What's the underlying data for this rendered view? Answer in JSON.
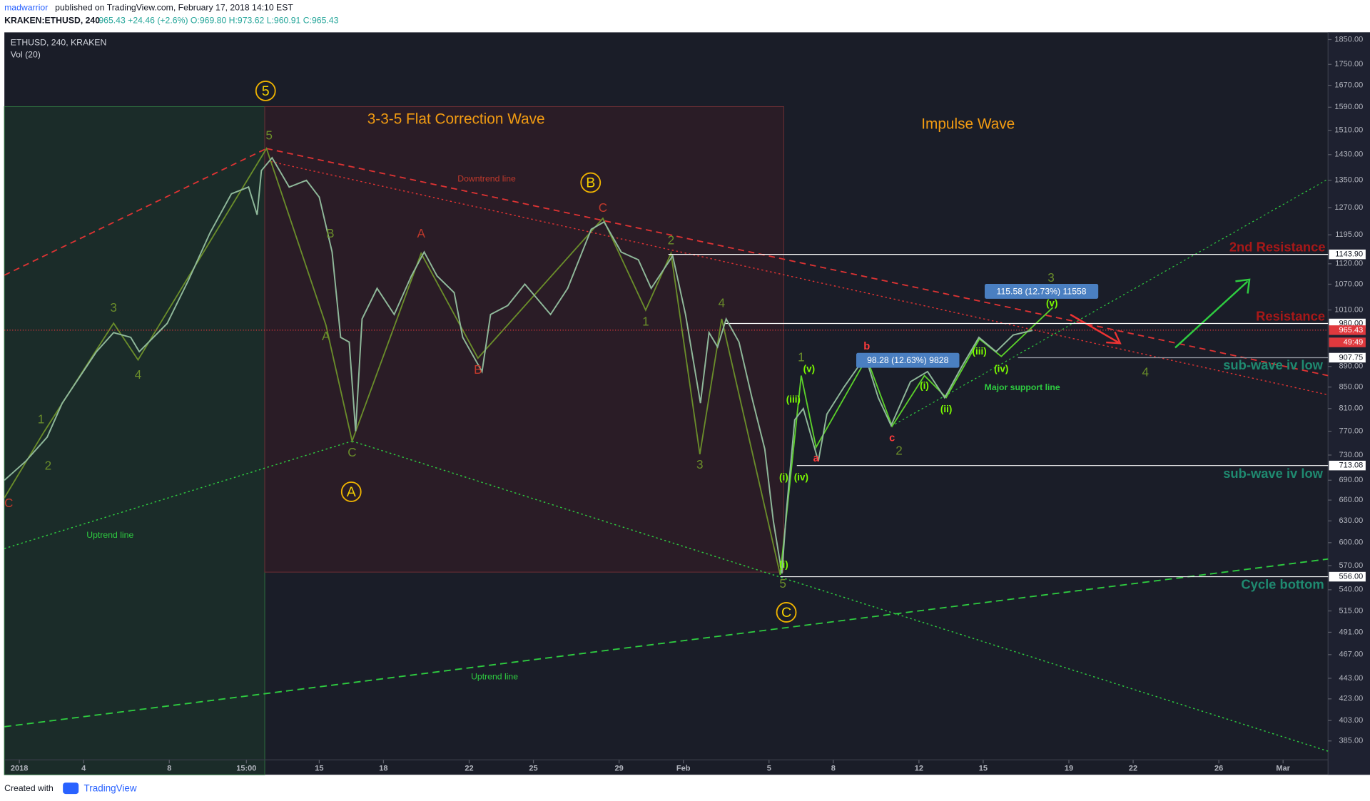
{
  "header": {
    "author": "madwarrior",
    "published": "published on TradingView.com, February 17, 2018 14:10 EST",
    "symbol": "KRAKEN:ETHUSD, 240",
    "quote": "965.43 +24.46 (+2.6%) O:969.80 H:973.62 L:960.91 C:965.43"
  },
  "footer": {
    "created": "Created with",
    "brand": "TradingView"
  },
  "chart_data": {
    "type": "line",
    "indicator": "Vol (20)",
    "log_scale": true,
    "grid": false,
    "series": [
      {
        "name": "ETHUSD, 240, KRAKEN",
        "color": "#8fb89a",
        "x": [
          0.3,
          1.3,
          2.3,
          3.0,
          4.6,
          5.4,
          6.2,
          6.6,
          7.9,
          8.9,
          9.9,
          10.9,
          11.7,
          12.1,
          12.3,
          12.8,
          13.6,
          14.4,
          15.0,
          15.6,
          16.0,
          16.4,
          16.7,
          17.0,
          17.7,
          18.5,
          19.3,
          19.9,
          20.5,
          21.3,
          21.7,
          22.6,
          23.0,
          23.8,
          24.6,
          25.8,
          26.6,
          27.7,
          28.3,
          29.1,
          29.9,
          30.5,
          31.5,
          32.1,
          32.8,
          33.2,
          33.6,
          34.0,
          34.6,
          35.2,
          35.8,
          36.2,
          36.6,
          36.8,
          37.2,
          37.6,
          38.3,
          38.7,
          39.5,
          40.5,
          41.1,
          41.7,
          42.6,
          43.4,
          44.2,
          45.0,
          45.8,
          46.6,
          47.4,
          48.3
        ],
        "values": [
          690,
          720,
          760,
          820,
          920,
          960,
          950,
          920,
          980,
          1080,
          1200,
          1310,
          1330,
          1250,
          1380,
          1420,
          1330,
          1350,
          1300,
          1150,
          950,
          940,
          770,
          990,
          1060,
          1000,
          1090,
          1150,
          1090,
          1050,
          950,
          880,
          1000,
          1020,
          1070,
          1000,
          1060,
          1210,
          1230,
          1150,
          1130,
          1060,
          1140,
          1000,
          820,
          960,
          930,
          990,
          940,
          830,
          740,
          630,
          560,
          640,
          790,
          810,
          720,
          800,
          850,
          910,
          830,
          780,
          860,
          880,
          830,
          890,
          950,
          920,
          955,
          965
        ]
      }
    ],
    "xlim": [
      0.3,
      62.1
    ],
    "xticks": [
      {
        "value": 1,
        "label": "2018"
      },
      {
        "value": 4,
        "label": "4"
      },
      {
        "value": 8,
        "label": "8"
      },
      {
        "value": 11.6,
        "label": "15:00"
      },
      {
        "value": 15,
        "label": "15"
      },
      {
        "value": 18,
        "label": "18"
      },
      {
        "value": 22,
        "label": "22"
      },
      {
        "value": 25,
        "label": "25"
      },
      {
        "value": 29,
        "label": "29"
      },
      {
        "value": 32,
        "label": "Feb"
      },
      {
        "value": 36,
        "label": "5"
      },
      {
        "value": 39,
        "label": "8"
      },
      {
        "value": 43,
        "label": "12"
      },
      {
        "value": 46,
        "label": "15"
      },
      {
        "value": 50,
        "label": "19"
      },
      {
        "value": 53,
        "label": "22"
      },
      {
        "value": 57,
        "label": "26"
      },
      {
        "value": 60,
        "label": "Mar"
      }
    ],
    "ylim": [
      369,
      1880
    ],
    "yticks": [
      {
        "value": 385,
        "label": "385.00"
      },
      {
        "value": 403,
        "label": "403.00"
      },
      {
        "value": 423,
        "label": "423.00"
      },
      {
        "value": 443,
        "label": "443.00"
      },
      {
        "value": 467,
        "label": "467.00"
      },
      {
        "value": 491,
        "label": "491.00"
      },
      {
        "value": 515,
        "label": "515.00"
      },
      {
        "value": 540,
        "label": "540.00"
      },
      {
        "value": 570,
        "label": "570.00"
      },
      {
        "value": 600,
        "label": "600.00"
      },
      {
        "value": 630,
        "label": "630.00"
      },
      {
        "value": 660,
        "label": "660.00"
      },
      {
        "value": 690,
        "label": "690.00"
      },
      {
        "value": 730,
        "label": "730.00"
      },
      {
        "value": 770,
        "label": "770.00"
      },
      {
        "value": 810,
        "label": "810.00"
      },
      {
        "value": 850,
        "label": "850.00"
      },
      {
        "value": 890,
        "label": "890.00"
      },
      {
        "value": 1010,
        "label": "1010.00"
      },
      {
        "value": 1070,
        "label": "1070.00"
      },
      {
        "value": 1120,
        "label": "1120.00"
      },
      {
        "value": 1195,
        "label": "1195.00"
      },
      {
        "value": 1270,
        "label": "1270.00"
      },
      {
        "value": 1350,
        "label": "1350.00"
      },
      {
        "value": 1430,
        "label": "1430.00"
      },
      {
        "value": 1510,
        "label": "1510.00"
      },
      {
        "value": 1590,
        "label": "1590.00"
      },
      {
        "value": 1670,
        "label": "1670.00"
      },
      {
        "value": 1750,
        "label": "1750.00"
      },
      {
        "value": 1850,
        "label": "1850.00"
      }
    ],
    "price_levels": [
      {
        "value": 1143.9,
        "label": "1143.90"
      },
      {
        "value": 980,
        "label": "980.00"
      },
      {
        "value": 965.43,
        "label": "965.43"
      },
      {
        "value": 907.75,
        "label": "907.75"
      },
      {
        "value": 713.08,
        "label": "713.08"
      },
      {
        "value": 556,
        "label": "556.00"
      }
    ],
    "countdown": "49:49",
    "wave_circles": [
      "5",
      "B",
      "A",
      "C"
    ],
    "measure_labels": [
      "98.28 (12.63%) 9828",
      "115.58 (12.73%) 11558"
    ],
    "annotations": [
      "3-3-5 Flat Correction Wave",
      "Impulse Wave",
      "Downtrend line",
      "Uptrend line",
      "Uptrend line",
      "Major support line",
      "2nd Resistance",
      "Resistance",
      "sub-wave iv low",
      "sub-wave iv low",
      "Cycle bottom",
      "1",
      "2",
      "3",
      "4",
      "5",
      "A",
      "B",
      "C",
      "1",
      "2",
      "3",
      "4",
      "5",
      "1",
      "2",
      "3",
      "4",
      "A",
      "B",
      "C",
      "C",
      "a",
      "b",
      "c",
      "(v)",
      "(iii)",
      "(iv)",
      "(i)",
      "(i)",
      "(iii)",
      "(iv)",
      "(ii)",
      "(i)",
      "(v)"
    ]
  }
}
